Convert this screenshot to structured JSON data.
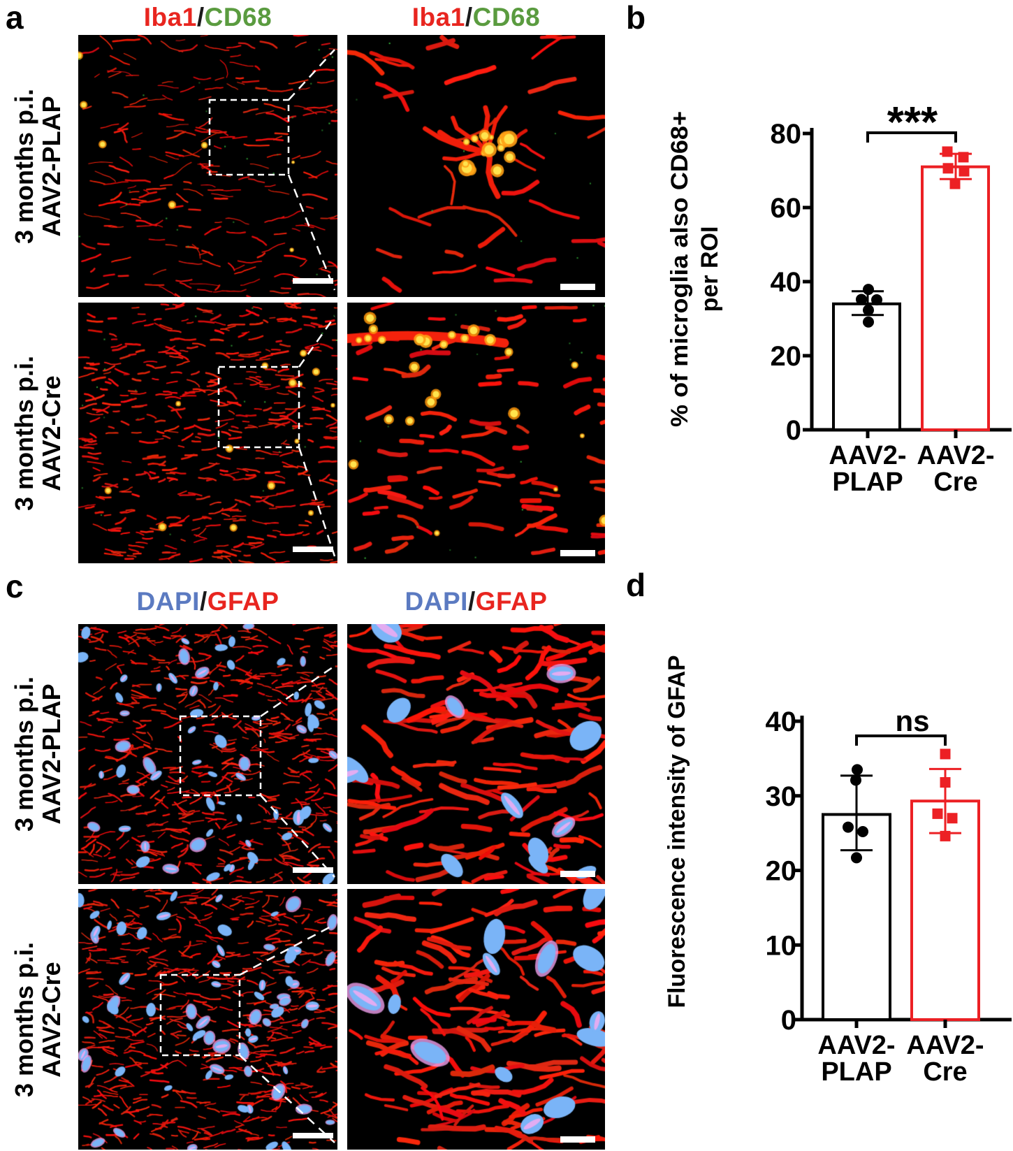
{
  "figure": {
    "panels": {
      "a": {
        "letter": "a",
        "title_parts": [
          {
            "text": "Iba1",
            "color": "#e8251f"
          },
          {
            "text": "/",
            "color": "#1a1a1a"
          },
          {
            "text": "CD68",
            "color": "#5a9b3f"
          }
        ],
        "rows": [
          {
            "lines": [
              "3 months p.i.",
              "AAV2-PLAP"
            ]
          },
          {
            "lines": [
              "3 months p.i.",
              "AAV2-Cre"
            ]
          }
        ]
      },
      "b": {
        "letter": "b"
      },
      "c": {
        "letter": "c",
        "title_parts": [
          {
            "text": "DAPI",
            "color": "#5b7ac1"
          },
          {
            "text": "/",
            "color": "#1a1a1a"
          },
          {
            "text": "GFAP",
            "color": "#e8251f"
          }
        ],
        "rows": [
          {
            "lines": [
              "3 months p.i.",
              "AAV2-PLAP"
            ]
          },
          {
            "lines": [
              "3 months p.i.",
              "AAV2-Cre"
            ]
          }
        ]
      },
      "d": {
        "letter": "d"
      }
    },
    "accent_red": "#ec2024",
    "micrograph_red": "#e81610",
    "nucleus_blue": "#7ab4f7"
  },
  "chart_data": [
    {
      "id": "b",
      "type": "bar",
      "title": "",
      "ylabel": "% of microglia also CD68+ per ROI",
      "ylabel_lines": [
        "% of microglia also CD68+",
        "per ROI"
      ],
      "ylim": [
        0,
        80
      ],
      "yticks": [
        0,
        20,
        40,
        60,
        80
      ],
      "grid": false,
      "categories": [
        "AAV2-PLAP",
        "AAV2-Cre"
      ],
      "category_label_lines": [
        [
          "AAV2-",
          "PLAP"
        ],
        [
          "AAV2-",
          "Cre"
        ]
      ],
      "significance": "***",
      "series": [
        {
          "name": "AAV2-PLAP",
          "outline": "#000000",
          "fill": "#ffffff",
          "marker": "circle",
          "marker_color": "#000000",
          "mean": 34,
          "sd_low": 31,
          "sd_high": 37.4,
          "points": [
            37.9,
            35.2,
            35.1,
            32.3,
            29.1
          ]
        },
        {
          "name": "AAV2-Cre",
          "outline": "#ec2024",
          "fill": "#ffffff",
          "marker": "square",
          "marker_color": "#ec2024",
          "mean": 71,
          "sd_low": 67.7,
          "sd_high": 74.5,
          "points": [
            75.1,
            73.6,
            70.6,
            69.8,
            66.4
          ]
        }
      ]
    },
    {
      "id": "d",
      "type": "bar",
      "title": "",
      "ylabel": "Fluorescence intensity of GFAP",
      "ylabel_lines": [
        "Fluorescence intensity of  GFAP"
      ],
      "ylim": [
        0,
        40
      ],
      "yticks": [
        0,
        10,
        20,
        30,
        40
      ],
      "grid": false,
      "categories": [
        "AAV2-PLAP",
        "AAV2-Cre"
      ],
      "category_label_lines": [
        [
          "AAV2-",
          "PLAP"
        ],
        [
          "AAV2-",
          "Cre"
        ]
      ],
      "significance": "ns",
      "series": [
        {
          "name": "AAV2-PLAP",
          "outline": "#000000",
          "fill": "#ffffff",
          "marker": "circle",
          "marker_color": "#000000",
          "mean": 27.5,
          "sd_low": 22.7,
          "sd_high": 32.7,
          "points": [
            33.5,
            32.1,
            25.8,
            25.2,
            21.7
          ]
        },
        {
          "name": "AAV2-Cre",
          "outline": "#ec2024",
          "fill": "#ffffff",
          "marker": "square",
          "marker_color": "#ec2024",
          "mean": 29.3,
          "sd_low": 25.0,
          "sd_high": 33.6,
          "points": [
            35.6,
            31.8,
            27.6,
            27.0,
            24.6
          ]
        }
      ]
    }
  ]
}
